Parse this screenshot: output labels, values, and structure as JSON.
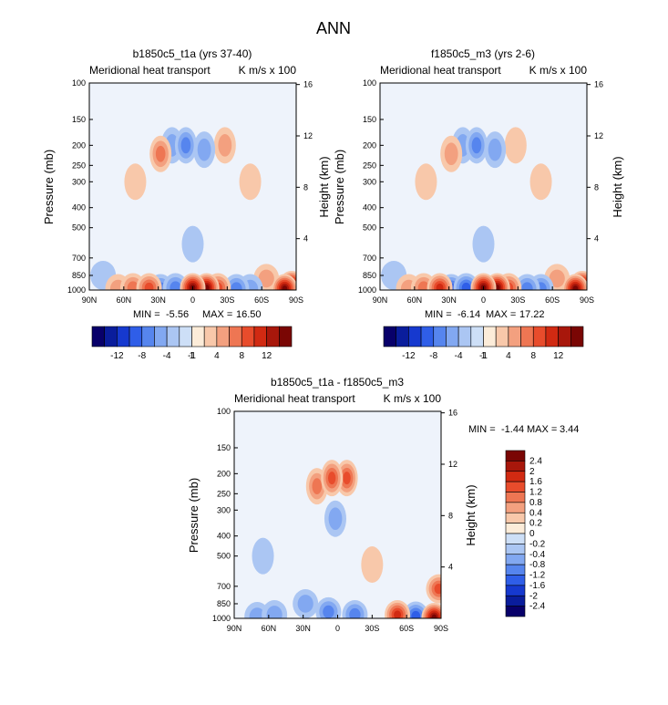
{
  "figure": {
    "title": "ANN"
  },
  "colors": {
    "scale": [
      "#08006a",
      "#0a1d9c",
      "#1639cf",
      "#2f5ee8",
      "#5685ee",
      "#82a8f1",
      "#abc6f3",
      "#cddff7",
      "#fcecd9",
      "#f8c8aa",
      "#f3a07f",
      "#ee7653",
      "#e84c2c",
      "#d12a12",
      "#a8170b",
      "#7a0604"
    ]
  },
  "chart_data": [
    {
      "type": "heatmap",
      "title": "b1850c5_t1a (yrs 37-40)",
      "subtitle_left": "Meridional heat transport",
      "subtitle_right": "K m/s x 100",
      "ylabel": "Pressure (mb)",
      "ylabel_right": "Height (km)",
      "x_ticks": [
        "90N",
        "60N",
        "30N",
        "0",
        "30S",
        "60S",
        "90S"
      ],
      "y_ticks": [
        "100",
        "150",
        "200",
        "250",
        "300",
        "400",
        "500",
        "700",
        "850",
        "1000"
      ],
      "y_right_ticks": [
        "16",
        "12",
        "8",
        "4"
      ],
      "stats": {
        "min_label": "MIN =",
        "min": "-5.56",
        "max_label": "MAX =",
        "max": "16.50"
      },
      "colorbar": {
        "orientation": "horizontal",
        "labels": [
          "-12",
          "-8",
          "-4",
          "-1",
          "1",
          "4",
          "8",
          "12"
        ]
      },
      "field": [
        {
          "lat": 65,
          "p": 985,
          "v": 3
        },
        {
          "lat": 52,
          "p": 975,
          "v": 4
        },
        {
          "lat": 38,
          "p": 975,
          "v": 7
        },
        {
          "lat": 28,
          "p": 985,
          "v": -5
        },
        {
          "lat": 15,
          "p": 975,
          "v": -5
        },
        {
          "lat": 0,
          "p": 975,
          "v": 16
        },
        {
          "lat": -12,
          "p": 975,
          "v": 15
        },
        {
          "lat": -22,
          "p": 975,
          "v": 7
        },
        {
          "lat": -38,
          "p": 985,
          "v": -4
        },
        {
          "lat": -50,
          "p": 985,
          "v": -3
        },
        {
          "lat": -80,
          "p": 985,
          "v": 16
        },
        {
          "lat": -86,
          "p": 950,
          "v": 13
        },
        {
          "lat": 28,
          "p": 220,
          "v": 4
        },
        {
          "lat": 18,
          "p": 200,
          "v": -2
        },
        {
          "lat": 6,
          "p": 200,
          "v": -5
        },
        {
          "lat": -10,
          "p": 210,
          "v": -3
        },
        {
          "lat": -28,
          "p": 200,
          "v": 2
        },
        {
          "lat": 50,
          "p": 300,
          "v": 1
        },
        {
          "lat": -50,
          "p": 300,
          "v": 1
        },
        {
          "lat": 0,
          "p": 600,
          "v": -1
        },
        {
          "lat": 78,
          "p": 850,
          "v": -1
        },
        {
          "lat": -64,
          "p": 880,
          "v": 2
        }
      ]
    },
    {
      "type": "heatmap",
      "title": "f1850c5_m3 (yrs 2-6)",
      "subtitle_left": "Meridional heat transport",
      "subtitle_right": "K m/s x 100",
      "ylabel": "Pressure (mb)",
      "ylabel_right": "Height (km)",
      "x_ticks": [
        "90N",
        "60N",
        "30N",
        "0",
        "30S",
        "60S",
        "90S"
      ],
      "y_ticks": [
        "100",
        "150",
        "200",
        "250",
        "300",
        "400",
        "500",
        "700",
        "850",
        "1000"
      ],
      "y_right_ticks": [
        "16",
        "12",
        "8",
        "4"
      ],
      "stats": {
        "min_label": "MIN =",
        "min": "-6.14",
        "max_label": "MAX =",
        "max": "17.22"
      },
      "colorbar": {
        "orientation": "horizontal",
        "labels": [
          "-12",
          "-8",
          "-4",
          "-1",
          "1",
          "4",
          "8",
          "12"
        ]
      },
      "field": [
        {
          "lat": 65,
          "p": 985,
          "v": 3
        },
        {
          "lat": 52,
          "p": 975,
          "v": 4
        },
        {
          "lat": 38,
          "p": 975,
          "v": 8
        },
        {
          "lat": 28,
          "p": 985,
          "v": -6
        },
        {
          "lat": 15,
          "p": 975,
          "v": -6
        },
        {
          "lat": 0,
          "p": 975,
          "v": 17
        },
        {
          "lat": -12,
          "p": 975,
          "v": 16
        },
        {
          "lat": -22,
          "p": 975,
          "v": 7
        },
        {
          "lat": -38,
          "p": 985,
          "v": -5
        },
        {
          "lat": -50,
          "p": 985,
          "v": -4
        },
        {
          "lat": -80,
          "p": 985,
          "v": 15
        },
        {
          "lat": -86,
          "p": 950,
          "v": 12
        },
        {
          "lat": 28,
          "p": 220,
          "v": 3
        },
        {
          "lat": 18,
          "p": 200,
          "v": -2
        },
        {
          "lat": 6,
          "p": 200,
          "v": -5
        },
        {
          "lat": -10,
          "p": 210,
          "v": -3
        },
        {
          "lat": -28,
          "p": 200,
          "v": 1.5
        },
        {
          "lat": 50,
          "p": 300,
          "v": 1
        },
        {
          "lat": -50,
          "p": 300,
          "v": 1
        },
        {
          "lat": 0,
          "p": 600,
          "v": -1
        },
        {
          "lat": 78,
          "p": 850,
          "v": -1
        },
        {
          "lat": -64,
          "p": 880,
          "v": 2
        }
      ]
    },
    {
      "type": "heatmap",
      "title": "b1850c5_t1a - f1850c5_m3",
      "subtitle_left": "Meridional heat transport",
      "subtitle_right": "K m/s x 100",
      "ylabel": "Pressure (mb)",
      "ylabel_right": "Height (km)",
      "x_ticks": [
        "90N",
        "60N",
        "30N",
        "0",
        "30S",
        "60S",
        "90S"
      ],
      "y_ticks": [
        "100",
        "150",
        "200",
        "250",
        "300",
        "400",
        "500",
        "700",
        "850",
        "1000"
      ],
      "y_right_ticks": [
        "16",
        "12",
        "8",
        "4"
      ],
      "stats": {
        "min_label": "MIN =",
        "min": "-1.44",
        "max_label": "MAX =",
        "max": "3.44"
      },
      "colorbar": {
        "orientation": "vertical",
        "labels": [
          "2.4",
          "2",
          "1.6",
          "1.2",
          "0.8",
          "0.4",
          "0.2",
          "0",
          "-0.2",
          "-0.4",
          "-0.8",
          "-1.2",
          "-1.6",
          "-2",
          "-2.4"
        ]
      },
      "field": [
        {
          "lat": 5,
          "p": 210,
          "v": 1.4
        },
        {
          "lat": -8,
          "p": 210,
          "v": 1.2
        },
        {
          "lat": 18,
          "p": 230,
          "v": 0.8
        },
        {
          "lat": 2,
          "p": 330,
          "v": -0.5
        },
        {
          "lat": 28,
          "p": 850,
          "v": -0.5
        },
        {
          "lat": 8,
          "p": 930,
          "v": -1.0
        },
        {
          "lat": -15,
          "p": 960,
          "v": -0.9
        },
        {
          "lat": 55,
          "p": 960,
          "v": -0.6
        },
        {
          "lat": 70,
          "p": 980,
          "v": -0.4
        },
        {
          "lat": -52,
          "p": 960,
          "v": 1.6
        },
        {
          "lat": -68,
          "p": 975,
          "v": -1.2
        },
        {
          "lat": -84,
          "p": 990,
          "v": 3.0
        },
        {
          "lat": -88,
          "p": 720,
          "v": 1.5
        },
        {
          "lat": 65,
          "p": 500,
          "v": -0.2
        },
        {
          "lat": -30,
          "p": 550,
          "v": 0.2
        }
      ]
    }
  ]
}
